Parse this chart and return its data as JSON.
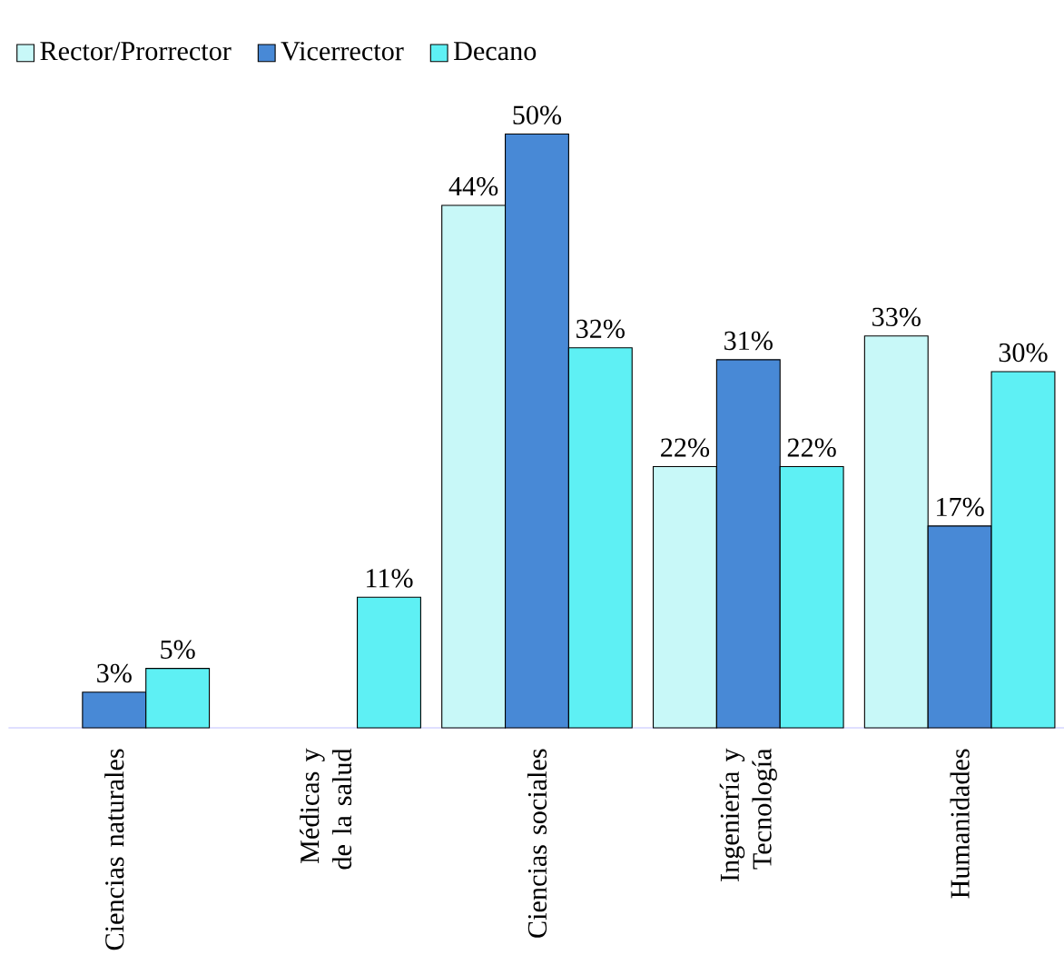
{
  "chart_data": {
    "type": "bar",
    "categories": [
      "Ciencias naturales",
      "Médicas y de la salud",
      "Ciencias sociales",
      "Ingeniería y Tecnología",
      "Humanidades"
    ],
    "series": [
      {
        "name": "Rector/Prorrector",
        "color": "#c8f8f8",
        "values": [
          null,
          null,
          44,
          22,
          33
        ],
        "value_labels": [
          null,
          null,
          "44%",
          "22%",
          "33%"
        ]
      },
      {
        "name": "Vicerrector",
        "color": "#4889d6",
        "values": [
          3,
          null,
          50,
          31,
          17
        ],
        "value_labels": [
          "3%",
          null,
          "50%",
          "31%",
          "17%"
        ]
      },
      {
        "name": "Decano",
        "color": "#5ef0f4",
        "values": [
          5,
          11,
          32,
          22,
          30
        ],
        "value_labels": [
          "5%",
          "11%",
          "32%",
          "22%",
          "30%"
        ]
      }
    ],
    "legend": "top left"
  }
}
